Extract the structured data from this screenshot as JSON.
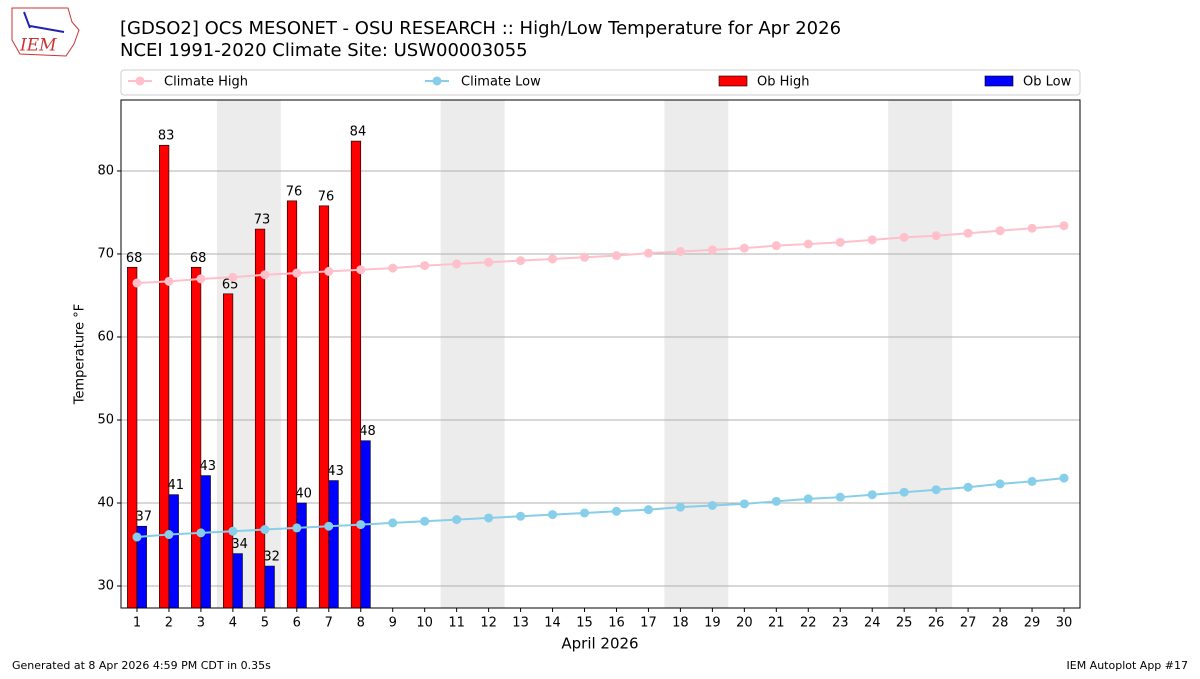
{
  "chart_data": {
    "type": "bar",
    "logo": "IEM",
    "title": "[GDSO2] OCS MESONET - OSU RESEARCH :: High/Low Temperature for Apr 2026",
    "subtitle": "NCEI 1991-2020 Climate Site: USW00003055",
    "xlabel": "April 2026",
    "ylabel": "Temperature °F",
    "footer_left": "Generated at 8 Apr 2026 4:59 PM CDT in 0.35s",
    "footer_right": "IEM Autoplot App #17",
    "x": [
      1,
      2,
      3,
      4,
      5,
      6,
      7,
      8,
      9,
      10,
      11,
      12,
      13,
      14,
      15,
      16,
      17,
      18,
      19,
      20,
      21,
      22,
      23,
      24,
      25,
      26,
      27,
      28,
      29,
      30
    ],
    "xlim": [
      0.5,
      30.5
    ],
    "xticks": [
      1,
      2,
      3,
      4,
      5,
      6,
      7,
      8,
      9,
      10,
      11,
      12,
      13,
      14,
      15,
      16,
      17,
      18,
      19,
      20,
      21,
      22,
      23,
      24,
      25,
      26,
      27,
      28,
      29,
      30
    ],
    "ylim": [
      27.35,
      88.55
    ],
    "yticks": [
      30,
      40,
      50,
      60,
      70,
      80
    ],
    "grid": true,
    "shaded_days": [
      [
        4,
        5
      ],
      [
        11,
        12
      ],
      [
        18,
        19
      ],
      [
        25,
        26
      ]
    ],
    "series": [
      {
        "name": "Climate High",
        "kind": "line",
        "color": "#ffc0cb",
        "values": [
          66.5,
          66.7,
          67.0,
          67.2,
          67.5,
          67.7,
          67.9,
          68.1,
          68.3,
          68.6,
          68.8,
          69.0,
          69.2,
          69.4,
          69.6,
          69.8,
          70.1,
          70.3,
          70.5,
          70.7,
          71.0,
          71.2,
          71.4,
          71.7,
          72.0,
          72.2,
          72.5,
          72.8,
          73.1,
          73.4
        ]
      },
      {
        "name": "Climate Low",
        "kind": "line",
        "color": "#87ceeb",
        "values": [
          35.9,
          36.2,
          36.4,
          36.6,
          36.8,
          37.0,
          37.2,
          37.4,
          37.6,
          37.8,
          38.0,
          38.2,
          38.4,
          38.6,
          38.8,
          39.0,
          39.2,
          39.5,
          39.7,
          39.9,
          40.2,
          40.5,
          40.7,
          41.0,
          41.3,
          41.6,
          41.9,
          42.3,
          42.6,
          43.0
        ]
      },
      {
        "name": "Ob High",
        "kind": "bar",
        "color": "#ff0000",
        "values": [
          68.4,
          83.1,
          68.4,
          65.2,
          73.0,
          76.4,
          75.8,
          83.6,
          null,
          null,
          null,
          null,
          null,
          null,
          null,
          null,
          null,
          null,
          null,
          null,
          null,
          null,
          null,
          null,
          null,
          null,
          null,
          null,
          null,
          null
        ],
        "value_labels": [
          "68",
          "83",
          "68",
          "65",
          "73",
          "76",
          "76",
          "84",
          null,
          null,
          null,
          null,
          null,
          null,
          null,
          null,
          null,
          null,
          null,
          null,
          null,
          null,
          null,
          null,
          null,
          null,
          null,
          null,
          null,
          null
        ]
      },
      {
        "name": "Ob Low",
        "kind": "bar",
        "color": "#0000ff",
        "values": [
          37.2,
          41.0,
          43.3,
          33.9,
          32.4,
          40.0,
          42.7,
          47.5,
          null,
          null,
          null,
          null,
          null,
          null,
          null,
          null,
          null,
          null,
          null,
          null,
          null,
          null,
          null,
          null,
          null,
          null,
          null,
          null,
          null,
          null
        ],
        "value_labels": [
          "37",
          "41",
          "43",
          "34",
          "32",
          "40",
          "43",
          "48",
          null,
          null,
          null,
          null,
          null,
          null,
          null,
          null,
          null,
          null,
          null,
          null,
          null,
          null,
          null,
          null,
          null,
          null,
          null,
          null,
          null,
          null
        ]
      }
    ]
  }
}
